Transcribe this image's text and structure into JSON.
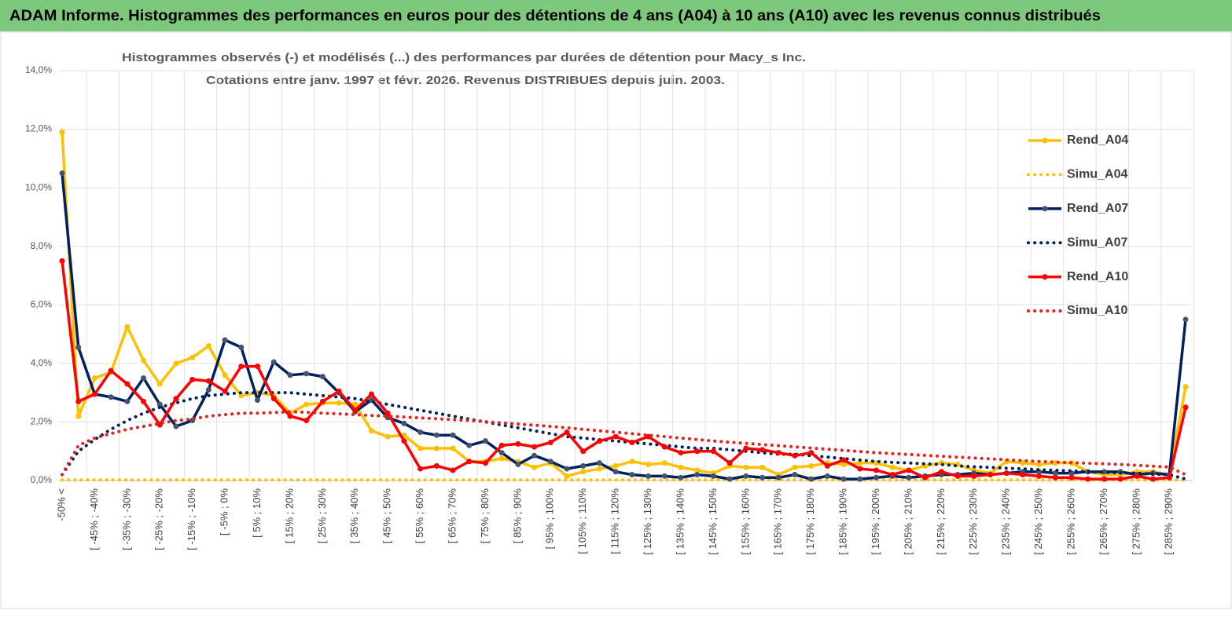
{
  "chart_data": {
    "type": "line",
    "title": "ADAM Informe. Histogrammes des performances en euros pour des détentions de 4 ans (A04) à 10 ans (A10) avec les revenus connus distribués",
    "subtitle": [
      "Histogrammes observés (-) et modélisés (...) des performances par durées de détention pour Macy_s Inc.",
      "Cotations entre janv. 1997 et févr. 2026. Revenus DISTRIBUES depuis juin. 2003."
    ],
    "categories": [
      "-50% <",
      null,
      "[ -45% ; -40%",
      null,
      "[ -35% ; -30%",
      null,
      "[ -25% ; -20%",
      null,
      "[ -15% ; -10%",
      null,
      "[ -5% ; 0%",
      null,
      "[ 5% ; 10%",
      null,
      "[ 15% ; 20%",
      null,
      "[ 25% ; 30%",
      null,
      "[ 35% ; 40%",
      null,
      "[ 45% ; 50%",
      null,
      "[ 55% ; 60%",
      null,
      "[ 65% ; 70%",
      null,
      "[ 75% ; 80%",
      null,
      "[ 85% ; 90%",
      null,
      "[ 95% ; 100%",
      null,
      "[ 105% ; 110%",
      null,
      "[ 115% ; 120%",
      null,
      "[ 125% ; 130%",
      null,
      "[ 135% ; 140%",
      null,
      "[ 145% ; 150%",
      null,
      "[ 155% ; 160%",
      null,
      "[ 165% ; 170%",
      null,
      "[ 175% ; 180%",
      null,
      "[ 185% ; 190%",
      null,
      "[ 195% ; 200%",
      null,
      "[ 205% ; 210%",
      null,
      "[ 215% ; 220%",
      null,
      "[ 225% ; 230%",
      null,
      "[ 235% ; 240%",
      null,
      "[ 245% ; 250%",
      null,
      "[ 255% ; 260%",
      null,
      "[ 265% ; 270%",
      null,
      "[ 275% ; 280%",
      null,
      "[ 285% ; 290%",
      null
    ],
    "series": [
      {
        "name": "Rend_A04",
        "color": "#ffc000",
        "dotted": false,
        "values": [
          11.9,
          2.2,
          3.5,
          3.7,
          5.25,
          4.1,
          3.3,
          4.0,
          4.2,
          4.6,
          3.6,
          2.9,
          3.0,
          2.9,
          2.3,
          2.6,
          2.65,
          2.65,
          2.6,
          1.7,
          1.5,
          1.55,
          1.1,
          1.1,
          1.1,
          0.65,
          0.65,
          0.75,
          0.65,
          0.45,
          0.6,
          0.15,
          0.3,
          0.4,
          0.5,
          0.65,
          0.55,
          0.6,
          0.45,
          0.35,
          0.25,
          0.5,
          0.45,
          0.45,
          0.2,
          0.45,
          0.5,
          0.6,
          0.55,
          0.6,
          0.6,
          0.45,
          0.35,
          0.5,
          0.6,
          0.55,
          0.35,
          0.25,
          0.65,
          0.6,
          0.55,
          0.6,
          0.6,
          0.3,
          0.2,
          0.2,
          0.3,
          0.3,
          0.2,
          3.2
        ]
      },
      {
        "name": "Simu_A04",
        "color": "#ffc000",
        "dotted": true,
        "values": [
          0.02,
          0.02,
          0.02,
          0.02,
          0.02,
          0.02,
          0.02,
          0.02,
          0.02,
          0.02,
          0.02,
          0.02,
          0.02,
          0.02,
          0.02,
          0.02,
          0.02,
          0.02,
          0.02,
          0.02,
          0.02,
          0.02,
          0.02,
          0.02,
          0.02,
          0.02,
          0.02,
          0.02,
          0.02,
          0.02,
          0.02,
          0.02,
          0.02,
          0.02,
          0.02,
          0.02,
          0.02,
          0.02,
          0.02,
          0.02,
          0.02,
          0.02,
          0.02,
          0.02,
          0.02,
          0.02,
          0.02,
          0.02,
          0.02,
          0.02,
          0.02,
          0.02,
          0.02,
          0.02,
          0.02,
          0.02,
          0.02,
          0.02,
          0.02,
          0.02,
          0.02,
          0.02,
          0.02,
          0.02,
          0.02,
          0.02,
          0.02,
          0.02,
          0.02,
          0.02
        ]
      },
      {
        "name": "Rend_A07",
        "color": "#002060",
        "marker": "#44546a",
        "dotted": false,
        "values": [
          10.5,
          4.55,
          2.95,
          2.85,
          2.7,
          3.5,
          2.6,
          1.85,
          2.05,
          3.1,
          4.8,
          4.55,
          2.75,
          4.05,
          3.6,
          3.65,
          3.55,
          3.0,
          2.35,
          2.75,
          2.15,
          1.95,
          1.65,
          1.55,
          1.55,
          1.2,
          1.35,
          0.95,
          0.55,
          0.85,
          0.65,
          0.4,
          0.5,
          0.6,
          0.3,
          0.2,
          0.15,
          0.15,
          0.1,
          0.2,
          0.15,
          0.05,
          0.15,
          0.1,
          0.1,
          0.2,
          0.05,
          0.15,
          0.05,
          0.05,
          0.1,
          0.15,
          0.1,
          0.15,
          0.2,
          0.2,
          0.25,
          0.2,
          0.25,
          0.3,
          0.3,
          0.25,
          0.25,
          0.3,
          0.3,
          0.3,
          0.2,
          0.25,
          0.2,
          5.5
        ]
      },
      {
        "name": "Simu_A07",
        "color": "#002060",
        "dotted": true,
        "values": [
          0.2,
          1.0,
          1.4,
          1.75,
          2.05,
          2.3,
          2.5,
          2.65,
          2.8,
          2.9,
          2.95,
          3.0,
          3.0,
          3.0,
          3.0,
          2.95,
          2.9,
          2.85,
          2.8,
          2.7,
          2.6,
          2.5,
          2.4,
          2.3,
          2.2,
          2.1,
          2.0,
          1.9,
          1.8,
          1.7,
          1.6,
          1.5,
          1.45,
          1.4,
          1.35,
          1.3,
          1.25,
          1.2,
          1.15,
          1.1,
          1.1,
          1.05,
          1.0,
          0.95,
          0.9,
          0.9,
          0.85,
          0.8,
          0.75,
          0.7,
          0.65,
          0.62,
          0.6,
          0.57,
          0.55,
          0.5,
          0.47,
          0.45,
          0.42,
          0.4,
          0.37,
          0.35,
          0.33,
          0.3,
          0.28,
          0.26,
          0.25,
          0.22,
          0.2,
          0.05
        ]
      },
      {
        "name": "Rend_A10",
        "color": "#ff0000",
        "dotted": false,
        "values": [
          7.5,
          2.7,
          2.95,
          3.75,
          3.3,
          2.7,
          1.9,
          2.8,
          3.45,
          3.4,
          3.05,
          3.9,
          3.9,
          2.8,
          2.2,
          2.05,
          2.7,
          3.05,
          2.4,
          2.95,
          2.3,
          1.35,
          0.4,
          0.5,
          0.35,
          0.65,
          0.6,
          1.2,
          1.25,
          1.15,
          1.3,
          1.65,
          1.0,
          1.35,
          1.5,
          1.3,
          1.5,
          1.15,
          0.95,
          1.0,
          1.0,
          0.6,
          1.1,
          1.05,
          0.95,
          0.85,
          0.95,
          0.5,
          0.7,
          0.4,
          0.35,
          0.2,
          0.35,
          0.1,
          0.3,
          0.15,
          0.15,
          0.2,
          0.25,
          0.2,
          0.15,
          0.1,
          0.1,
          0.05,
          0.05,
          0.05,
          0.15,
          0.05,
          0.1,
          2.5
        ]
      },
      {
        "name": "Simu_A10",
        "color": "#e8201e",
        "dotted": true,
        "values": [
          0.2,
          1.2,
          1.45,
          1.6,
          1.75,
          1.85,
          1.95,
          2.05,
          2.1,
          2.2,
          2.25,
          2.3,
          2.3,
          2.32,
          2.35,
          2.33,
          2.3,
          2.28,
          2.25,
          2.22,
          2.2,
          2.17,
          2.14,
          2.11,
          2.08,
          2.05,
          2.01,
          1.97,
          1.93,
          1.89,
          1.85,
          1.8,
          1.75,
          1.7,
          1.65,
          1.6,
          1.55,
          1.5,
          1.45,
          1.4,
          1.35,
          1.31,
          1.27,
          1.23,
          1.19,
          1.15,
          1.11,
          1.07,
          1.03,
          0.99,
          0.95,
          0.92,
          0.89,
          0.86,
          0.83,
          0.8,
          0.77,
          0.74,
          0.71,
          0.68,
          0.65,
          0.63,
          0.61,
          0.59,
          0.57,
          0.55,
          0.52,
          0.49,
          0.46,
          0.2
        ]
      }
    ],
    "ylim": [
      0,
      14
    ],
    "yticks": [
      {
        "value": 0,
        "label": "0,0%"
      },
      {
        "value": 2,
        "label": "2,0%"
      },
      {
        "value": 4,
        "label": "4,0%"
      },
      {
        "value": 6,
        "label": "6,0%"
      },
      {
        "value": 8,
        "label": "8,0%"
      },
      {
        "value": 10,
        "label": "10,0%"
      },
      {
        "value": 12,
        "label": "12,0%"
      },
      {
        "value": 14,
        "label": "14,0%"
      }
    ],
    "grid": true,
    "legend": "right"
  }
}
